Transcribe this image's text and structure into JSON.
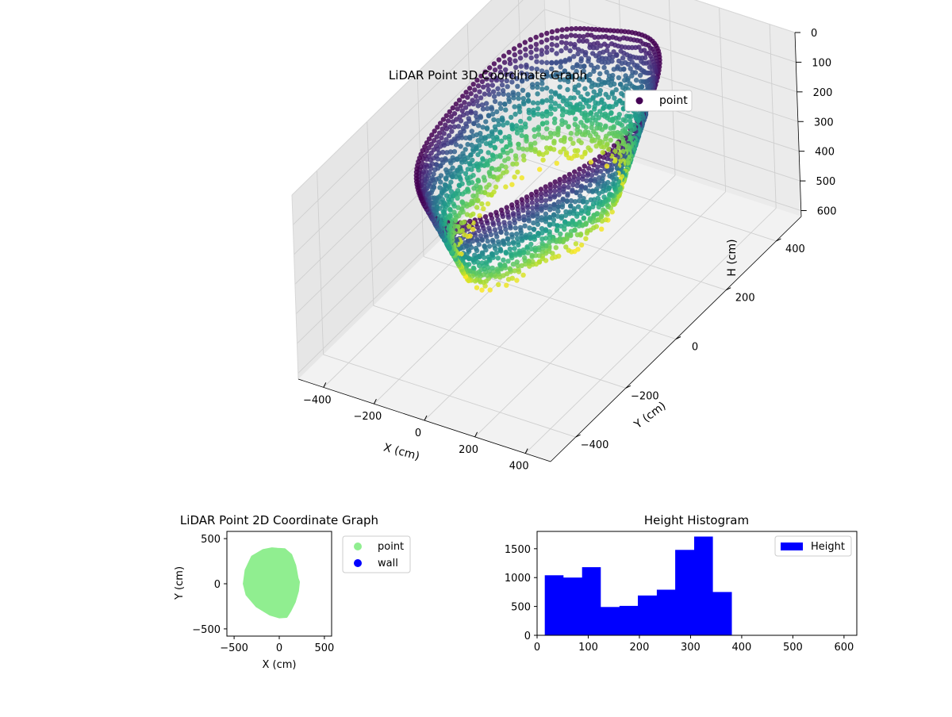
{
  "chart_data": [
    {
      "type": "scatter3d",
      "title": "LiDAR Point 3D Coordinate Graph",
      "xlabel": "X (cm)",
      "ylabel": "Y (cm)",
      "zlabel": "H (cm)",
      "xticks": [
        "−400",
        "−200",
        "0",
        "200",
        "400"
      ],
      "yticks": [
        "−400",
        "−200",
        "0",
        "200",
        "400"
      ],
      "zticks": [
        "0",
        "100",
        "200",
        "300",
        "400",
        "500",
        "600"
      ],
      "xlim": [
        -500,
        500
      ],
      "ylim": [
        -500,
        500
      ],
      "zlim": [
        0,
        620
      ],
      "z_axis_inverted": true,
      "colormap": "viridis",
      "legend": [
        {
          "label": "point",
          "color": "#440154"
        }
      ],
      "legend_position": "top-right",
      "grid": true,
      "shape": {
        "description_of_points": "ring-shaped wall of points, rim at low H, bottom at high H",
        "center_x": -30,
        "center_y": 0,
        "radius_x": 300,
        "radius_y": 380,
        "h_min": 30,
        "h_max": 380
      }
    },
    {
      "type": "scatter",
      "title": "LiDAR Point 2D Coordinate Graph",
      "xlabel": "X (cm)",
      "ylabel": "Y (cm)",
      "xticks": [
        "−500",
        "0",
        "500"
      ],
      "yticks": [
        "−500",
        "0",
        "500"
      ],
      "xlim": [
        -580,
        580
      ],
      "ylim": [
        -580,
        580
      ],
      "series": [
        {
          "name": "point",
          "color": "#90ee90",
          "outline": [
            [
              -20,
              385
            ],
            [
              60,
              380
            ],
            [
              130,
              320
            ],
            [
              175,
              200
            ],
            [
              200,
              60
            ],
            [
              215,
              20
            ],
            [
              205,
              -80
            ],
            [
              170,
              -200
            ],
            [
              120,
              -300
            ],
            [
              80,
              -365
            ],
            [
              0,
              -370
            ],
            [
              -100,
              -340
            ],
            [
              -250,
              -250
            ],
            [
              -360,
              -120
            ],
            [
              -390,
              0
            ],
            [
              -370,
              150
            ],
            [
              -300,
              300
            ],
            [
              -180,
              370
            ],
            [
              -80,
              390
            ]
          ]
        },
        {
          "name": "wall",
          "color": "#0000ff",
          "outline": []
        }
      ],
      "legend_position": "outside-right",
      "grid": false
    },
    {
      "type": "bar",
      "title": "Height Histogram",
      "xlabel": "",
      "ylabel": "",
      "bin_edges": [
        15,
        51,
        88,
        124,
        161,
        197,
        234,
        270,
        307,
        343,
        380
      ],
      "values": [
        1040,
        1000,
        1180,
        490,
        510,
        690,
        790,
        1480,
        1710,
        750
      ],
      "xlim": [
        0,
        625
      ],
      "ylim": [
        0,
        1800
      ],
      "xticks": [
        "0",
        "100",
        "200",
        "300",
        "400",
        "500",
        "600"
      ],
      "yticks": [
        "0",
        "500",
        "1000",
        "1500"
      ],
      "legend": [
        {
          "label": "Height",
          "color": "#0000ff"
        }
      ],
      "legend_position": "top-right",
      "grid": false
    }
  ]
}
